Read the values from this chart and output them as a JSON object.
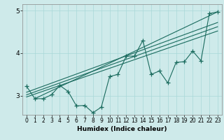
{
  "xlabel": "Humidex (Indice chaleur)",
  "ylabel": "",
  "bg_color": "#ceeaea",
  "line_color": "#1a6b5e",
  "xlim": [
    -0.5,
    23.5
  ],
  "ylim": [
    2.55,
    5.15
  ],
  "yticks": [
    3,
    4,
    5
  ],
  "xticks": [
    0,
    1,
    2,
    3,
    4,
    5,
    6,
    7,
    8,
    9,
    10,
    11,
    12,
    13,
    14,
    15,
    16,
    17,
    18,
    19,
    20,
    21,
    22,
    23
  ],
  "series": [
    [
      0,
      3.22
    ],
    [
      1,
      2.93
    ],
    [
      2,
      2.93
    ],
    [
      3,
      3.02
    ],
    [
      4,
      3.24
    ],
    [
      5,
      3.1
    ],
    [
      6,
      2.76
    ],
    [
      7,
      2.77
    ],
    [
      8,
      2.6
    ],
    [
      9,
      2.73
    ],
    [
      10,
      3.45
    ],
    [
      11,
      3.5
    ],
    [
      12,
      3.93
    ],
    [
      13,
      3.93
    ],
    [
      14,
      4.3
    ],
    [
      15,
      3.5
    ],
    [
      16,
      3.58
    ],
    [
      17,
      3.3
    ],
    [
      18,
      3.78
    ],
    [
      19,
      3.8
    ],
    [
      20,
      4.05
    ],
    [
      21,
      3.82
    ],
    [
      22,
      4.93
    ],
    [
      23,
      4.97
    ]
  ],
  "trend_lines": [
    [
      [
        0,
        3.08
      ],
      [
        23,
        4.72
      ]
    ],
    [
      [
        0,
        3.02
      ],
      [
        23,
        4.62
      ]
    ],
    [
      [
        0,
        2.97
      ],
      [
        23,
        4.52
      ]
    ],
    [
      [
        1,
        2.93
      ],
      [
        23,
        4.97
      ]
    ]
  ],
  "grid_color": "#a8d8d8",
  "marker_size": 4,
  "line_width": 0.8
}
